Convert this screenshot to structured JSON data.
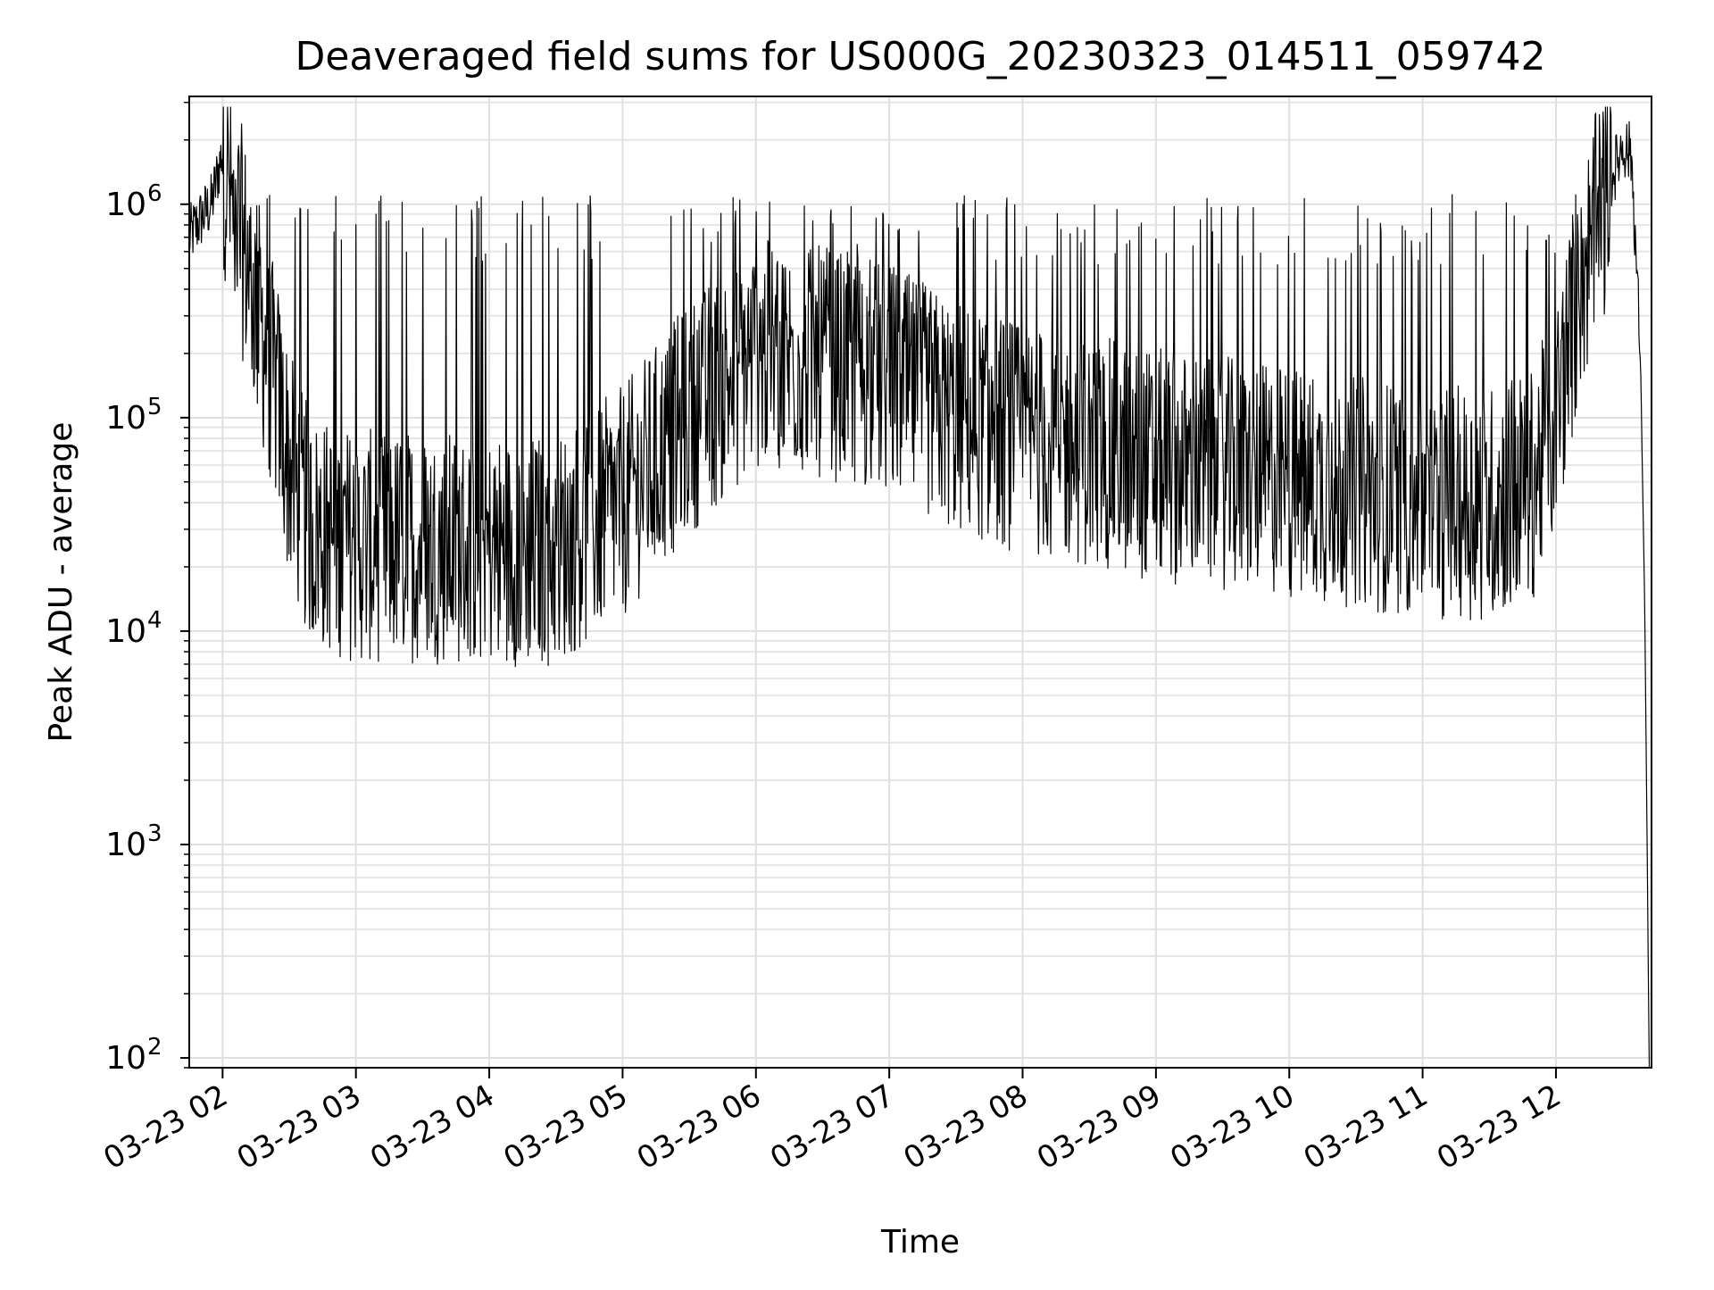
{
  "chart_data": {
    "type": "line",
    "title": "Deaveraged field sums for US000G_20230323_014511_059742",
    "xlabel": "Time",
    "ylabel": "Peak ADU - average",
    "yscale": "log",
    "ylim": [
      90,
      3200000
    ],
    "xlim": [
      "2023-03-23 01:45",
      "2023-03-23 12:43"
    ],
    "grid": true,
    "x_ticks": [
      {
        "t": "2023-03-23 02:00",
        "label": "03-23 02"
      },
      {
        "t": "2023-03-23 03:00",
        "label": "03-23 03"
      },
      {
        "t": "2023-03-23 04:00",
        "label": "03-23 04"
      },
      {
        "t": "2023-03-23 05:00",
        "label": "03-23 05"
      },
      {
        "t": "2023-03-23 06:00",
        "label": "03-23 06"
      },
      {
        "t": "2023-03-23 07:00",
        "label": "03-23 07"
      },
      {
        "t": "2023-03-23 08:00",
        "label": "03-23 08"
      },
      {
        "t": "2023-03-23 09:00",
        "label": "03-23 09"
      },
      {
        "t": "2023-03-23 10:00",
        "label": "03-23 10"
      },
      {
        "t": "2023-03-23 11:00",
        "label": "03-23 11"
      },
      {
        "t": "2023-03-23 12:00",
        "label": "03-23 12"
      }
    ],
    "y_ticks": [
      {
        "v": 100,
        "base": "10",
        "exp": "2"
      },
      {
        "v": 1000,
        "base": "10",
        "exp": "3"
      },
      {
        "v": 10000,
        "base": "10",
        "exp": "4"
      },
      {
        "v": 100000,
        "base": "10",
        "exp": "5"
      },
      {
        "v": 1000000,
        "base": "10",
        "exp": "6"
      }
    ],
    "series": [
      {
        "color": "#000000",
        "points": [
          [
            "2023-03-23 01:45",
            700000
          ],
          [
            "2023-03-23 01:50",
            850000
          ],
          [
            "2023-03-23 01:55",
            1000000
          ],
          [
            "2023-03-23 02:00",
            1800000
          ],
          [
            "2023-03-23 02:05",
            900000
          ],
          [
            "2023-03-23 02:10",
            600000
          ],
          [
            "2023-03-23 02:15",
            350000
          ],
          [
            "2023-03-23 02:20",
            200000
          ],
          [
            "2023-03-23 02:25",
            120000
          ],
          [
            "2023-03-23 02:30",
            60000
          ],
          [
            "2023-03-23 02:35",
            40000
          ],
          [
            "2023-03-23 02:40",
            30000
          ],
          [
            "2023-03-23 02:50",
            27000
          ],
          [
            "2023-03-23 03:00",
            25000
          ],
          [
            "2023-03-23 03:30",
            25000
          ],
          [
            "2023-03-23 04:00",
            24000
          ],
          [
            "2023-03-23 04:30",
            24000
          ],
          [
            "2023-03-23 05:00",
            40000
          ],
          [
            "2023-03-23 05:30",
            100000
          ],
          [
            "2023-03-23 06:00",
            200000
          ],
          [
            "2023-03-23 06:30",
            180000
          ],
          [
            "2023-03-23 07:00",
            150000
          ],
          [
            "2023-03-23 07:30",
            100000
          ],
          [
            "2023-03-23 08:00",
            80000
          ],
          [
            "2023-03-23 08:30",
            70000
          ],
          [
            "2023-03-23 09:00",
            60000
          ],
          [
            "2023-03-23 09:30",
            55000
          ],
          [
            "2023-03-23 10:00",
            50000
          ],
          [
            "2023-03-23 10:30",
            45000
          ],
          [
            "2023-03-23 11:00",
            40000
          ],
          [
            "2023-03-23 11:30",
            40000
          ],
          [
            "2023-03-23 11:50",
            50000
          ],
          [
            "2023-03-23 12:00",
            100000
          ],
          [
            "2023-03-23 12:10",
            400000
          ],
          [
            "2023-03-23 12:20",
            900000
          ],
          [
            "2023-03-23 12:30",
            1900000
          ],
          [
            "2023-03-23 12:34",
            1700000
          ],
          [
            "2023-03-23 12:38",
            200000
          ],
          [
            "2023-03-23 12:40",
            12000
          ],
          [
            "2023-03-23 12:42",
            90
          ]
        ]
      }
    ]
  }
}
